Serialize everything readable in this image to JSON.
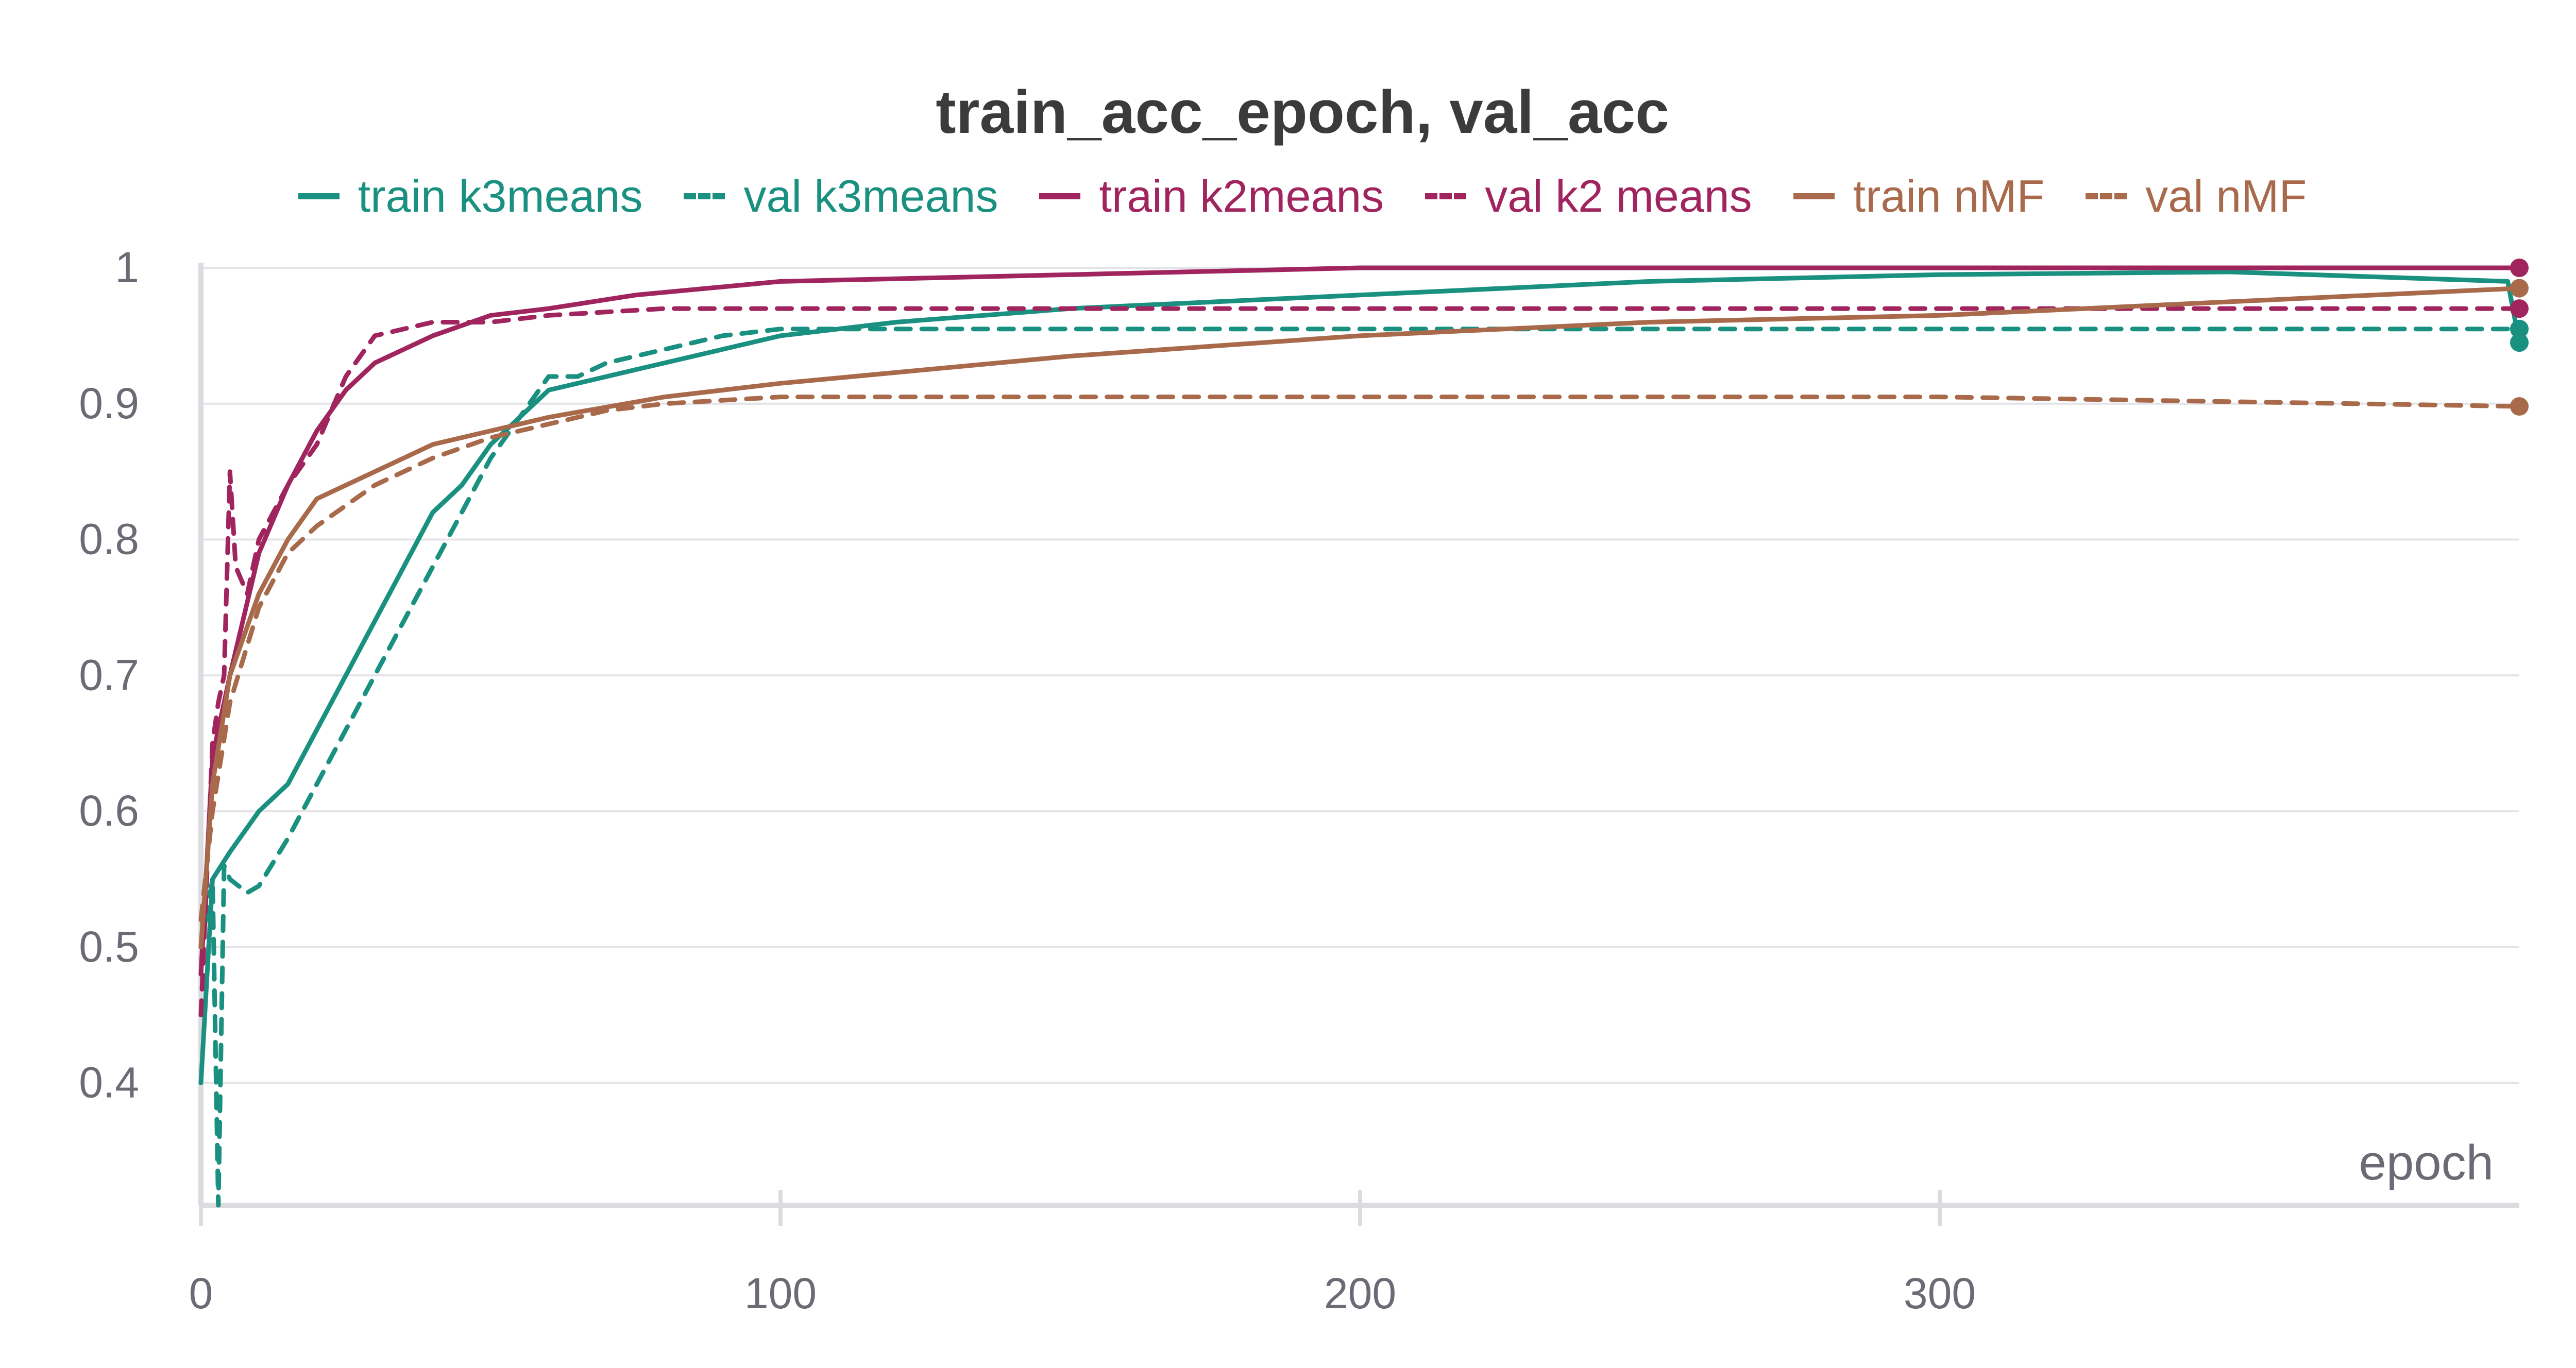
{
  "chart_data": {
    "type": "line",
    "title": "train_acc_epoch, val_acc",
    "xlabel": "epoch",
    "ylabel": "",
    "xlim": [
      0,
      400
    ],
    "ylim": [
      0.31,
      1.0
    ],
    "x_ticks": [
      0,
      100,
      200,
      300
    ],
    "y_ticks": [
      0.4,
      0.5,
      0.6,
      0.7,
      0.8,
      0.9,
      1
    ],
    "y_tick_labels": [
      "0.4",
      "0.5",
      "0.6",
      "0.7",
      "0.8",
      "0.9",
      "1"
    ],
    "legend_position": "top",
    "grid": true,
    "series": [
      {
        "name": "train k3means",
        "color": "#1a9080",
        "dash": false,
        "x": [
          0,
          2,
          5,
          10,
          15,
          20,
          25,
          30,
          35,
          40,
          45,
          50,
          55,
          60,
          70,
          80,
          90,
          100,
          120,
          150,
          200,
          250,
          300,
          350,
          398,
          400
        ],
        "y": [
          0.4,
          0.55,
          0.57,
          0.6,
          0.62,
          0.66,
          0.7,
          0.74,
          0.78,
          0.82,
          0.84,
          0.87,
          0.89,
          0.91,
          0.92,
          0.93,
          0.94,
          0.95,
          0.96,
          0.97,
          0.98,
          0.99,
          0.995,
          0.997,
          0.99,
          0.945
        ]
      },
      {
        "name": "val k3means",
        "color": "#1a9080",
        "dash": true,
        "x": [
          0,
          2,
          3,
          4,
          5,
          8,
          10,
          15,
          20,
          25,
          30,
          35,
          40,
          45,
          50,
          55,
          60,
          65,
          70,
          80,
          90,
          100,
          150,
          200,
          250,
          300,
          350,
          400
        ],
        "y": [
          0.5,
          0.55,
          0.31,
          0.56,
          0.55,
          0.54,
          0.545,
          0.58,
          0.62,
          0.66,
          0.7,
          0.74,
          0.78,
          0.82,
          0.86,
          0.89,
          0.92,
          0.92,
          0.93,
          0.94,
          0.95,
          0.955,
          0.955,
          0.955,
          0.955,
          0.955,
          0.955,
          0.955
        ]
      },
      {
        "name": "train k2means",
        "color": "#a0245e",
        "dash": false,
        "x": [
          0,
          2,
          5,
          10,
          15,
          20,
          25,
          30,
          40,
          50,
          60,
          75,
          100,
          150,
          200,
          300,
          400
        ],
        "y": [
          0.48,
          0.64,
          0.7,
          0.79,
          0.84,
          0.88,
          0.91,
          0.93,
          0.95,
          0.965,
          0.97,
          0.98,
          0.99,
          0.995,
          1.0,
          1.0,
          1.0
        ]
      },
      {
        "name": "val k2 means",
        "color": "#a0245e",
        "dash": true,
        "x": [
          0,
          2,
          3,
          4,
          5,
          6,
          8,
          10,
          15,
          20,
          25,
          30,
          40,
          50,
          60,
          80,
          100,
          150,
          200,
          300,
          400
        ],
        "y": [
          0.45,
          0.65,
          0.68,
          0.7,
          0.85,
          0.78,
          0.76,
          0.8,
          0.84,
          0.87,
          0.92,
          0.95,
          0.96,
          0.96,
          0.965,
          0.97,
          0.97,
          0.97,
          0.97,
          0.97,
          0.97
        ]
      },
      {
        "name": "train nMF",
        "color": "#a86a4a",
        "dash": false,
        "x": [
          0,
          2,
          5,
          10,
          15,
          20,
          30,
          40,
          50,
          60,
          80,
          100,
          150,
          200,
          250,
          300,
          350,
          400
        ],
        "y": [
          0.5,
          0.62,
          0.7,
          0.76,
          0.8,
          0.83,
          0.85,
          0.87,
          0.88,
          0.89,
          0.905,
          0.915,
          0.935,
          0.95,
          0.96,
          0.965,
          0.975,
          0.985
        ]
      },
      {
        "name": "val nMF",
        "color": "#a86a4a",
        "dash": true,
        "x": [
          0,
          2,
          5,
          10,
          15,
          20,
          30,
          40,
          50,
          60,
          70,
          80,
          100,
          150,
          200,
          300,
          400
        ],
        "y": [
          0.52,
          0.6,
          0.68,
          0.75,
          0.79,
          0.81,
          0.84,
          0.86,
          0.875,
          0.885,
          0.895,
          0.9,
          0.905,
          0.905,
          0.905,
          0.905,
          0.898
        ]
      }
    ]
  }
}
